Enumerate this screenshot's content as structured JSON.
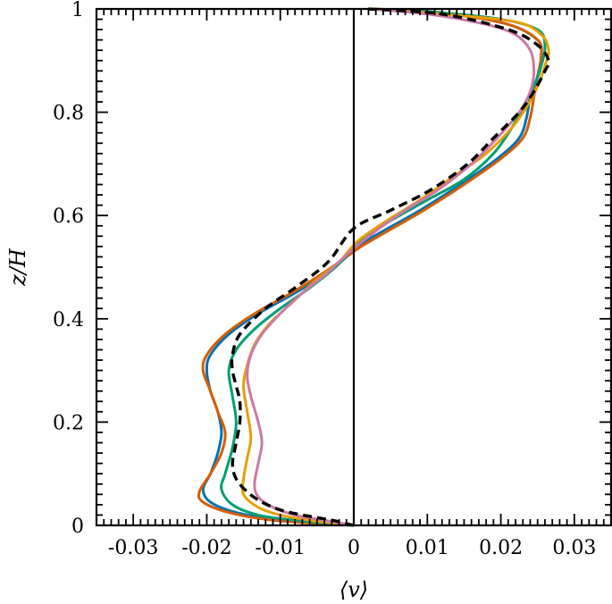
{
  "chart_data": {
    "type": "line",
    "xlabel": "⟨v⟩",
    "ylabel": "z/H",
    "xlim": [
      -0.035,
      0.035
    ],
    "ylim": [
      0,
      1
    ],
    "xticks": [
      -0.03,
      -0.02,
      -0.01,
      0,
      0.01,
      0.02,
      0.03
    ],
    "xtick_labels": [
      "-0.03",
      "-0.02",
      "-0.01",
      "0",
      "0.01",
      "0.02",
      "0.03"
    ],
    "yticks": [
      0,
      0.2,
      0.4,
      0.6,
      0.8,
      1
    ],
    "ytick_labels": [
      "0",
      "0.2",
      "0.4",
      "0.6",
      "0.8",
      "1"
    ],
    "grid": false,
    "zero_line": {
      "x": 0,
      "color": "#000000"
    },
    "series": [
      {
        "color": "#0072b2",
        "dash": false,
        "points": [
          [
            0,
            0
          ],
          [
            -0.01,
            0.01
          ],
          [
            -0.016,
            0.025
          ],
          [
            -0.0195,
            0.045
          ],
          [
            -0.0205,
            0.07
          ],
          [
            -0.0195,
            0.1
          ],
          [
            -0.0185,
            0.14
          ],
          [
            -0.018,
            0.18
          ],
          [
            -0.0185,
            0.22
          ],
          [
            -0.0195,
            0.26
          ],
          [
            -0.02,
            0.3
          ],
          [
            -0.0195,
            0.33
          ],
          [
            -0.017,
            0.37
          ],
          [
            -0.013,
            0.41
          ],
          [
            -0.008,
            0.45
          ],
          [
            -0.0035,
            0.49
          ],
          [
            -0.001,
            0.52
          ],
          [
            0.001,
            0.545
          ],
          [
            0.004,
            0.57
          ],
          [
            0.009,
            0.61
          ],
          [
            0.0145,
            0.66
          ],
          [
            0.0195,
            0.71
          ],
          [
            0.0225,
            0.75
          ],
          [
            0.0235,
            0.79
          ],
          [
            0.024,
            0.83
          ],
          [
            0.025,
            0.87
          ],
          [
            0.0255,
            0.91
          ],
          [
            0.025,
            0.94
          ],
          [
            0.021,
            0.97
          ],
          [
            0.013,
            0.99
          ],
          [
            0.003,
            1.0
          ]
        ]
      },
      {
        "color": "#d55e00",
        "dash": false,
        "points": [
          [
            0,
            0
          ],
          [
            -0.011,
            0.01
          ],
          [
            -0.017,
            0.025
          ],
          [
            -0.0205,
            0.045
          ],
          [
            -0.021,
            0.065
          ],
          [
            -0.0195,
            0.1
          ],
          [
            -0.018,
            0.14
          ],
          [
            -0.0175,
            0.18
          ],
          [
            -0.0185,
            0.22
          ],
          [
            -0.0195,
            0.26
          ],
          [
            -0.0205,
            0.3
          ],
          [
            -0.02,
            0.33
          ],
          [
            -0.0175,
            0.37
          ],
          [
            -0.0135,
            0.41
          ],
          [
            -0.0085,
            0.45
          ],
          [
            -0.004,
            0.49
          ],
          [
            -0.001,
            0.52
          ],
          [
            0.001,
            0.54
          ],
          [
            0.004,
            0.565
          ],
          [
            0.0095,
            0.61
          ],
          [
            0.015,
            0.66
          ],
          [
            0.02,
            0.71
          ],
          [
            0.023,
            0.75
          ],
          [
            0.024,
            0.79
          ],
          [
            0.0245,
            0.83
          ],
          [
            0.025,
            0.87
          ],
          [
            0.0255,
            0.91
          ],
          [
            0.025,
            0.94
          ],
          [
            0.021,
            0.97
          ],
          [
            0.013,
            0.99
          ],
          [
            0.003,
            1.0
          ]
        ]
      },
      {
        "color": "#009e73",
        "dash": false,
        "points": [
          [
            0,
            0
          ],
          [
            -0.008,
            0.01
          ],
          [
            -0.013,
            0.02
          ],
          [
            -0.0165,
            0.04
          ],
          [
            -0.018,
            0.07
          ],
          [
            -0.0175,
            0.1
          ],
          [
            -0.0165,
            0.15
          ],
          [
            -0.016,
            0.2
          ],
          [
            -0.0165,
            0.25
          ],
          [
            -0.017,
            0.3
          ],
          [
            -0.016,
            0.34
          ],
          [
            -0.0135,
            0.38
          ],
          [
            -0.01,
            0.42
          ],
          [
            -0.006,
            0.46
          ],
          [
            -0.0025,
            0.5
          ],
          [
            -0.0005,
            0.53
          ],
          [
            0.0015,
            0.56
          ],
          [
            0.005,
            0.59
          ],
          [
            0.01,
            0.63
          ],
          [
            0.015,
            0.67
          ],
          [
            0.019,
            0.72
          ],
          [
            0.0215,
            0.77
          ],
          [
            0.023,
            0.81
          ],
          [
            0.0245,
            0.85
          ],
          [
            0.0255,
            0.89
          ],
          [
            0.026,
            0.93
          ],
          [
            0.025,
            0.96
          ],
          [
            0.02,
            0.98
          ],
          [
            0.01,
            0.995
          ],
          [
            0.002,
            1.0
          ]
        ]
      },
      {
        "color": "#e69f00",
        "dash": false,
        "points": [
          [
            0,
            0
          ],
          [
            -0.006,
            0.01
          ],
          [
            -0.01,
            0.02
          ],
          [
            -0.013,
            0.035
          ],
          [
            -0.015,
            0.06
          ],
          [
            -0.015,
            0.09
          ],
          [
            -0.0145,
            0.13
          ],
          [
            -0.014,
            0.17
          ],
          [
            -0.0145,
            0.22
          ],
          [
            -0.015,
            0.27
          ],
          [
            -0.0145,
            0.31
          ],
          [
            -0.0135,
            0.35
          ],
          [
            -0.0115,
            0.39
          ],
          [
            -0.0085,
            0.43
          ],
          [
            -0.0055,
            0.47
          ],
          [
            -0.002,
            0.51
          ],
          [
            0.0005,
            0.55
          ],
          [
            0.0045,
            0.59
          ],
          [
            0.009,
            0.63
          ],
          [
            0.014,
            0.68
          ],
          [
            0.018,
            0.72
          ],
          [
            0.0215,
            0.77
          ],
          [
            0.0235,
            0.81
          ],
          [
            0.025,
            0.85
          ],
          [
            0.026,
            0.89
          ],
          [
            0.0265,
            0.92
          ],
          [
            0.0255,
            0.95
          ],
          [
            0.022,
            0.975
          ],
          [
            0.012,
            0.99
          ],
          [
            0.003,
            1.0
          ]
        ]
      },
      {
        "color": "#cc79a7",
        "dash": false,
        "points": [
          [
            0,
            0
          ],
          [
            -0.004,
            0.01
          ],
          [
            -0.008,
            0.02
          ],
          [
            -0.011,
            0.035
          ],
          [
            -0.013,
            0.055
          ],
          [
            -0.0135,
            0.08
          ],
          [
            -0.013,
            0.12
          ],
          [
            -0.0125,
            0.16
          ],
          [
            -0.013,
            0.2
          ],
          [
            -0.014,
            0.25
          ],
          [
            -0.0145,
            0.29
          ],
          [
            -0.014,
            0.33
          ],
          [
            -0.0125,
            0.37
          ],
          [
            -0.01,
            0.41
          ],
          [
            -0.007,
            0.45
          ],
          [
            -0.0035,
            0.49
          ],
          [
            -0.0005,
            0.53
          ],
          [
            0.003,
            0.57
          ],
          [
            0.007,
            0.61
          ],
          [
            0.0115,
            0.65
          ],
          [
            0.016,
            0.7
          ],
          [
            0.0195,
            0.75
          ],
          [
            0.0225,
            0.8
          ],
          [
            0.024,
            0.84
          ],
          [
            0.0245,
            0.88
          ],
          [
            0.024,
            0.92
          ],
          [
            0.022,
            0.95
          ],
          [
            0.018,
            0.97
          ],
          [
            0.01,
            0.99
          ],
          [
            0.002,
            1.0
          ]
        ]
      },
      {
        "color": "#000000",
        "dash": true,
        "points": [
          [
            0,
            0
          ],
          [
            -0.003,
            0.01
          ],
          [
            -0.007,
            0.02
          ],
          [
            -0.01,
            0.03
          ],
          [
            -0.0125,
            0.045
          ],
          [
            -0.0145,
            0.065
          ],
          [
            -0.016,
            0.09
          ],
          [
            -0.0165,
            0.12
          ],
          [
            -0.016,
            0.16
          ],
          [
            -0.0155,
            0.2
          ],
          [
            -0.0155,
            0.24
          ],
          [
            -0.016,
            0.27
          ],
          [
            -0.0165,
            0.3
          ],
          [
            -0.0165,
            0.33
          ],
          [
            -0.0155,
            0.37
          ],
          [
            -0.012,
            0.42
          ],
          [
            -0.008,
            0.46
          ],
          [
            -0.0035,
            0.51
          ],
          [
            0.0,
            0.575
          ],
          [
            0.005,
            0.61
          ],
          [
            0.0105,
            0.65
          ],
          [
            0.0155,
            0.7
          ],
          [
            0.019,
            0.75
          ],
          [
            0.0225,
            0.8
          ],
          [
            0.0245,
            0.84
          ],
          [
            0.026,
            0.88
          ],
          [
            0.0265,
            0.9
          ],
          [
            0.025,
            0.93
          ],
          [
            0.021,
            0.96
          ],
          [
            0.012,
            0.99
          ],
          [
            0.002,
            1.0
          ]
        ]
      }
    ]
  }
}
